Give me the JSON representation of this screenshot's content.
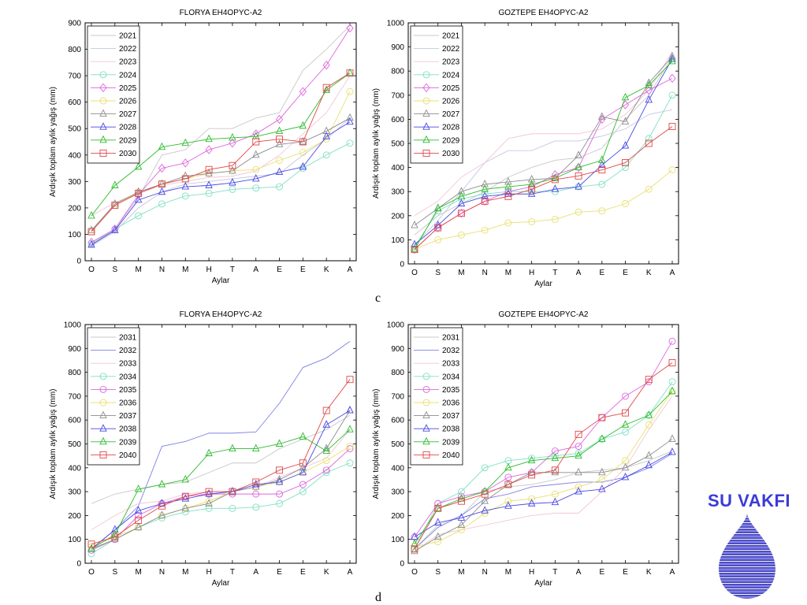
{
  "panel_labels": {
    "c": "c",
    "d": "d"
  },
  "brand": {
    "name": "SU VAKFI",
    "color": "#3b3bd8"
  },
  "styles": {
    "2021": {
      "color": "#c8c8c8",
      "marker": "none"
    },
    "2022": {
      "color": "#c6c6e2",
      "marker": "none"
    },
    "2023": {
      "color": "#f2c6d8",
      "marker": "none"
    },
    "2024": {
      "color": "#7fe0c2",
      "marker": "circle"
    },
    "2025": {
      "color": "#dd66dd",
      "marker": "diamond"
    },
    "2026": {
      "color": "#e8e070",
      "marker": "circle"
    },
    "2027": {
      "color": "#8c8c8c",
      "marker": "triangle"
    },
    "2028": {
      "color": "#4848e6",
      "marker": "triangle"
    },
    "2029": {
      "color": "#2dbb2d",
      "marker": "triangle"
    },
    "2030": {
      "color": "#e04848",
      "marker": "square"
    },
    "2031": {
      "color": "#c8c8c8",
      "marker": "none"
    },
    "2032": {
      "color": "#8080e6",
      "marker": "none"
    },
    "2033": {
      "color": "#f2c6d8",
      "marker": "none"
    },
    "2034": {
      "color": "#7fe0c2",
      "marker": "circle"
    },
    "2035": {
      "color": "#dd66dd",
      "marker": "circle"
    },
    "2036": {
      "color": "#e8e070",
      "marker": "circle"
    },
    "2037": {
      "color": "#8c8c8c",
      "marker": "triangle"
    },
    "2038": {
      "color": "#4848e6",
      "marker": "triangle"
    },
    "2039": {
      "color": "#2dbb2d",
      "marker": "triangle"
    },
    "2040": {
      "color": "#e04848",
      "marker": "square"
    }
  },
  "chart_data": [
    {
      "type": "line",
      "title": "FLORYA EH4OPYC-A2",
      "xlabel": "Aylar",
      "ylabel": "Ardışık toplam aylık yağış (mm)",
      "categories": [
        "O",
        "S",
        "M",
        "N",
        "M",
        "H",
        "T",
        "A",
        "E",
        "E",
        "K",
        "A"
      ],
      "ylim": [
        0,
        900
      ],
      "yticks": [
        0,
        100,
        200,
        300,
        400,
        500,
        600,
        700,
        800,
        900
      ],
      "legend": "top-left",
      "series": [
        {
          "name": "2021",
          "values": [
            60,
            120,
            240,
            400,
            420,
            500,
            500,
            540,
            560,
            720,
            800,
            890
          ]
        },
        {
          "name": "2022",
          "values": [
            55,
            110,
            200,
            260,
            290,
            300,
            310,
            320,
            330,
            400,
            460,
            540
          ]
        },
        {
          "name": "2023",
          "values": [
            170,
            220,
            255,
            285,
            300,
            315,
            320,
            340,
            400,
            480,
            560,
            700
          ]
        },
        {
          "name": "2024",
          "values": [
            65,
            120,
            170,
            215,
            245,
            255,
            270,
            275,
            280,
            350,
            400,
            445
          ]
        },
        {
          "name": "2025",
          "values": [
            70,
            120,
            250,
            350,
            370,
            420,
            445,
            480,
            535,
            640,
            740,
            880
          ]
        },
        {
          "name": "2026",
          "values": [
            110,
            210,
            260,
            290,
            310,
            330,
            340,
            345,
            380,
            410,
            460,
            640
          ]
        },
        {
          "name": "2027",
          "values": [
            115,
            215,
            260,
            290,
            320,
            330,
            340,
            400,
            440,
            450,
            490,
            540
          ]
        },
        {
          "name": "2028",
          "values": [
            60,
            115,
            230,
            260,
            280,
            285,
            295,
            310,
            335,
            355,
            470,
            525
          ]
        },
        {
          "name": "2029",
          "values": [
            170,
            285,
            355,
            430,
            445,
            460,
            465,
            470,
            490,
            510,
            645,
            710
          ]
        },
        {
          "name": "2030",
          "values": [
            110,
            210,
            255,
            290,
            310,
            345,
            360,
            450,
            460,
            450,
            655,
            710
          ]
        }
      ]
    },
    {
      "type": "line",
      "title": "GOZTEPE EH4OPYC-A2",
      "xlabel": "Aylar",
      "ylabel": "Ardışık toplam aylık yağış (mm)",
      "categories": [
        "O",
        "S",
        "M",
        "N",
        "M",
        "H",
        "T",
        "A",
        "E",
        "E",
        "K",
        "A"
      ],
      "ylim": [
        0,
        1000
      ],
      "yticks": [
        0,
        100,
        200,
        300,
        400,
        500,
        600,
        700,
        800,
        900,
        1000
      ],
      "legend": "top-left",
      "series": [
        {
          "name": "2021",
          "values": [
            120,
            200,
            250,
            300,
            360,
            400,
            430,
            440,
            480,
            600,
            700,
            860
          ]
        },
        {
          "name": "2022",
          "values": [
            80,
            180,
            300,
            420,
            470,
            470,
            510,
            510,
            530,
            560,
            620,
            640
          ]
        },
        {
          "name": "2023",
          "values": [
            200,
            260,
            360,
            420,
            520,
            540,
            540,
            540,
            560,
            620,
            720,
            880
          ]
        },
        {
          "name": "2024",
          "values": [
            70,
            220,
            270,
            290,
            300,
            300,
            300,
            320,
            330,
            400,
            520,
            700
          ]
        },
        {
          "name": "2025",
          "values": [
            60,
            150,
            210,
            260,
            300,
            320,
            370,
            400,
            600,
            660,
            720,
            770
          ]
        },
        {
          "name": "2026",
          "values": [
            60,
            100,
            120,
            140,
            170,
            175,
            185,
            215,
            220,
            250,
            310,
            390
          ]
        },
        {
          "name": "2027",
          "values": [
            160,
            230,
            300,
            330,
            340,
            350,
            355,
            450,
            610,
            590,
            750,
            860
          ]
        },
        {
          "name": "2028",
          "values": [
            80,
            160,
            250,
            280,
            290,
            290,
            310,
            320,
            410,
            490,
            680,
            850
          ]
        },
        {
          "name": "2029",
          "values": [
            60,
            230,
            280,
            310,
            320,
            330,
            355,
            400,
            430,
            690,
            740,
            840
          ]
        },
        {
          "name": "2030",
          "values": [
            60,
            150,
            210,
            260,
            280,
            310,
            350,
            365,
            390,
            420,
            500,
            570
          ]
        }
      ]
    },
    {
      "type": "line",
      "title": "FLORYA EH4OPYC-A2",
      "xlabel": "Aylar",
      "ylabel": "Ardışık toplam aylık yağış (mm)",
      "categories": [
        "O",
        "S",
        "M",
        "N",
        "M",
        "H",
        "T",
        "A",
        "E",
        "E",
        "K",
        "A"
      ],
      "ylim": [
        0,
        1000
      ],
      "yticks": [
        0,
        100,
        200,
        300,
        400,
        500,
        600,
        700,
        800,
        900,
        1000
      ],
      "legend": "top-left",
      "series": [
        {
          "name": "2031",
          "values": [
            250,
            290,
            310,
            330,
            340,
            380,
            420,
            420,
            480,
            520,
            560,
            620
          ]
        },
        {
          "name": "2032",
          "values": [
            60,
            140,
            240,
            490,
            510,
            545,
            545,
            550,
            670,
            820,
            860,
            930
          ]
        },
        {
          "name": "2033",
          "values": [
            140,
            200,
            250,
            260,
            290,
            300,
            300,
            320,
            360,
            400,
            440,
            560
          ]
        },
        {
          "name": "2034",
          "values": [
            40,
            100,
            150,
            190,
            215,
            230,
            230,
            235,
            250,
            300,
            380,
            420
          ]
        },
        {
          "name": "2035",
          "values": [
            55,
            100,
            200,
            250,
            280,
            290,
            290,
            290,
            290,
            330,
            390,
            480
          ]
        },
        {
          "name": "2036",
          "values": [
            70,
            110,
            150,
            200,
            230,
            260,
            300,
            320,
            340,
            380,
            430,
            490
          ]
        },
        {
          "name": "2037",
          "values": [
            60,
            100,
            150,
            200,
            230,
            250,
            300,
            320,
            350,
            400,
            480,
            640
          ]
        },
        {
          "name": "2038",
          "values": [
            60,
            140,
            220,
            250,
            270,
            290,
            300,
            330,
            340,
            380,
            580,
            640
          ]
        },
        {
          "name": "2039",
          "values": [
            60,
            120,
            310,
            330,
            350,
            460,
            480,
            480,
            500,
            530,
            470,
            560
          ]
        },
        {
          "name": "2040",
          "values": [
            80,
            110,
            180,
            240,
            280,
            300,
            300,
            340,
            390,
            420,
            640,
            770
          ]
        }
      ]
    },
    {
      "type": "line",
      "title": "GOZTEPE EH4OPYC-A2",
      "xlabel": "Aylar",
      "ylabel": "Ardışık toplam aylık yağış (mm)",
      "categories": [
        "O",
        "S",
        "M",
        "N",
        "M",
        "H",
        "T",
        "A",
        "E",
        "E",
        "K",
        "A"
      ],
      "ylim": [
        0,
        1000
      ],
      "yticks": [
        0,
        100,
        200,
        300,
        400,
        500,
        600,
        700,
        800,
        900,
        1000
      ],
      "legend": "top-left",
      "series": [
        {
          "name": "2031",
          "values": [
            60,
            160,
            200,
            300,
            320,
            330,
            350,
            380,
            390,
            400,
            430,
            470
          ]
        },
        {
          "name": "2032",
          "values": [
            60,
            150,
            200,
            270,
            290,
            320,
            330,
            340,
            340,
            360,
            400,
            460
          ]
        },
        {
          "name": "2033",
          "values": [
            50,
            120,
            140,
            160,
            180,
            200,
            210,
            210,
            300,
            400,
            560,
            700
          ]
        },
        {
          "name": "2034",
          "values": [
            60,
            250,
            300,
            400,
            430,
            440,
            450,
            460,
            520,
            550,
            620,
            760
          ]
        },
        {
          "name": "2035",
          "values": [
            110,
            250,
            280,
            300,
            360,
            380,
            470,
            490,
            610,
            700,
            760,
            930
          ]
        },
        {
          "name": "2036",
          "values": [
            70,
            90,
            140,
            210,
            260,
            270,
            290,
            320,
            350,
            430,
            580,
            720
          ]
        },
        {
          "name": "2037",
          "values": [
            50,
            110,
            160,
            260,
            330,
            380,
            380,
            380,
            380,
            400,
            450,
            520
          ]
        },
        {
          "name": "2038",
          "values": [
            110,
            170,
            190,
            220,
            240,
            250,
            255,
            300,
            310,
            360,
            410,
            465
          ]
        },
        {
          "name": "2039",
          "values": [
            80,
            230,
            270,
            300,
            400,
            430,
            440,
            450,
            520,
            580,
            620,
            720
          ]
        },
        {
          "name": "2040",
          "values": [
            60,
            230,
            260,
            290,
            330,
            370,
            390,
            540,
            610,
            630,
            770,
            840
          ]
        }
      ]
    }
  ]
}
